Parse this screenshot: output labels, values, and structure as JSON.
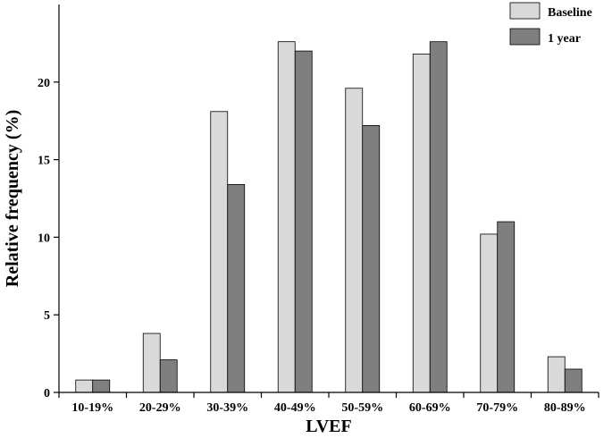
{
  "chart_data": {
    "type": "bar",
    "xlabel": "LVEF",
    "ylabel": "Relative frequency (%)",
    "categories": [
      "10-19%",
      "20-29%",
      "30-39%",
      "40-49%",
      "50-59%",
      "60-69%",
      "70-79%",
      "80-89%"
    ],
    "series": [
      {
        "name": "Baseline",
        "color": "#d9d9d9",
        "values": [
          0.8,
          3.8,
          18.1,
          22.6,
          19.6,
          21.8,
          10.2,
          2.3
        ]
      },
      {
        "name": "1 year",
        "color": "#7f7f7f",
        "values": [
          0.8,
          2.1,
          13.4,
          22.0,
          17.2,
          22.6,
          11.0,
          1.5
        ]
      }
    ],
    "ylim": [
      0,
      25
    ],
    "yticks": [
      0,
      5,
      10,
      15,
      20
    ],
    "grid": false,
    "legend": "top-right"
  }
}
